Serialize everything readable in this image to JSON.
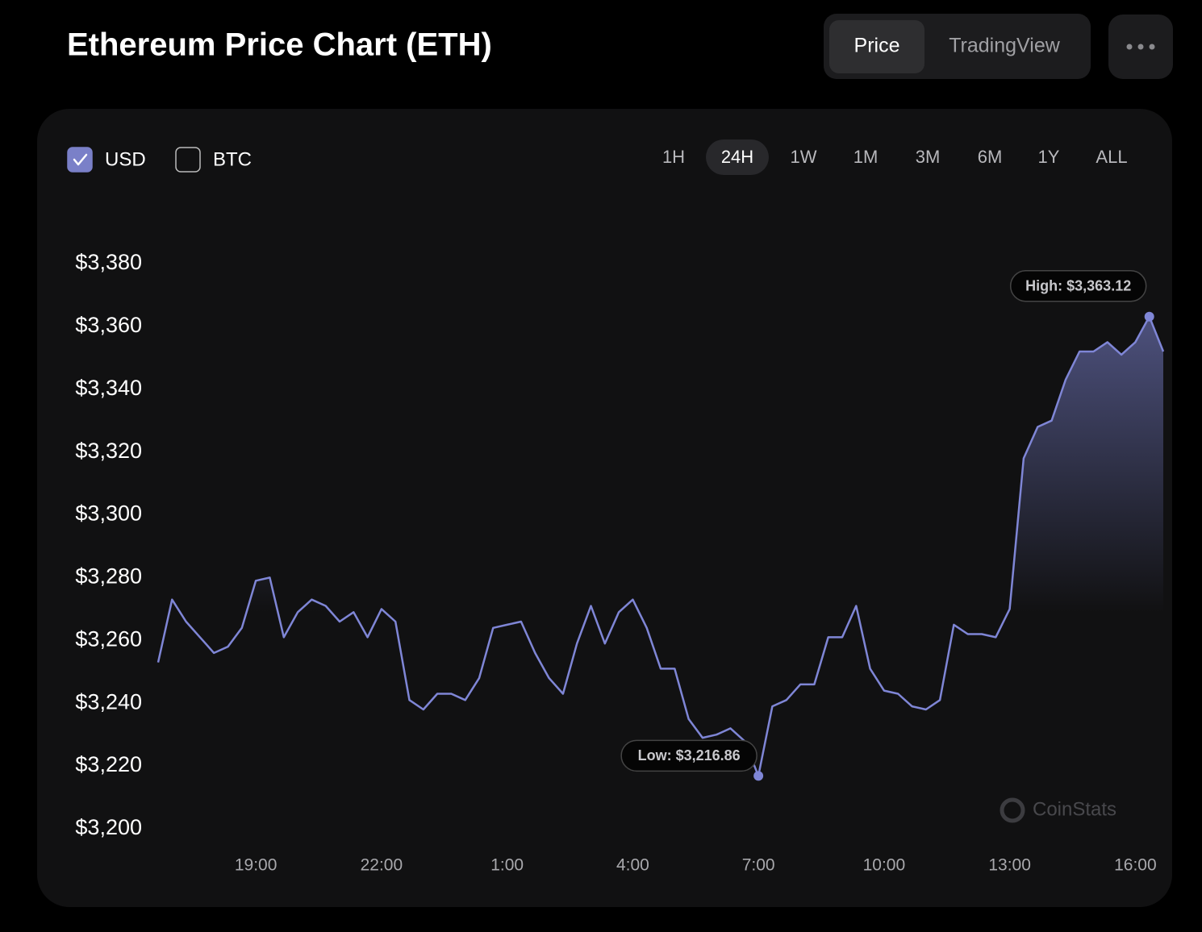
{
  "header": {
    "title": "Ethereum Price Chart (ETH)",
    "tabs": [
      "Price",
      "TradingView"
    ],
    "active_tab": 0
  },
  "currencies": [
    {
      "label": "USD",
      "checked": true
    },
    {
      "label": "BTC",
      "checked": false
    }
  ],
  "ranges": [
    "1H",
    "24H",
    "1W",
    "1M",
    "3M",
    "6M",
    "1Y",
    "ALL"
  ],
  "active_range": 1,
  "watermark": "CoinStats",
  "chart_data": {
    "type": "line",
    "x": [
      "16:40",
      "17:00",
      "17:20",
      "17:40",
      "18:00",
      "18:20",
      "18:40",
      "19:00",
      "19:20",
      "19:40",
      "20:00",
      "20:20",
      "20:40",
      "21:00",
      "21:20",
      "21:40",
      "22:00",
      "22:20",
      "22:40",
      "23:00",
      "23:20",
      "23:40",
      "0:00",
      "0:20",
      "0:40",
      "1:00",
      "1:20",
      "1:40",
      "2:00",
      "2:20",
      "2:40",
      "3:00",
      "3:20",
      "3:40",
      "4:00",
      "4:20",
      "4:40",
      "5:00",
      "5:20",
      "5:40",
      "6:00",
      "6:20",
      "6:40",
      "7:00",
      "7:20",
      "7:40",
      "8:00",
      "8:20",
      "8:40",
      "9:00",
      "9:20",
      "9:40",
      "10:00",
      "10:20",
      "10:40",
      "11:00",
      "11:20",
      "11:40",
      "12:00",
      "12:20",
      "12:40",
      "13:00",
      "13:20",
      "13:40",
      "14:00",
      "14:20",
      "14:40",
      "15:00",
      "15:20",
      "15:40",
      "16:00",
      "16:20",
      "16:40"
    ],
    "series": [
      {
        "name": "ETH",
        "color": "#7f86d6",
        "values": [
          3253,
          3273,
          3266,
          3261,
          3256,
          3258,
          3264,
          3279,
          3280,
          3261,
          3269,
          3273,
          3271,
          3266,
          3269,
          3261,
          3270,
          3266,
          3241,
          3238,
          3243,
          3243,
          3241,
          3248,
          3264,
          3265,
          3266,
          3256,
          3248,
          3243,
          3259,
          3271,
          3259,
          3269,
          3273,
          3264,
          3251,
          3251,
          3235,
          3229,
          3230,
          3232,
          3228,
          3216.86,
          3239,
          3241,
          3246,
          3246,
          3261,
          3261,
          3271,
          3251,
          3244,
          3243,
          3239,
          3238,
          3241,
          3265,
          3262,
          3262,
          3261,
          3270,
          3318,
          3328,
          3330,
          3343,
          3352,
          3352,
          3355,
          3351,
          3355,
          3363.12,
          3352
        ]
      }
    ],
    "low_label": "Low: $3,216.86",
    "high_label": "High: $3,363.12",
    "ylim": [
      3200,
      3380
    ],
    "yticks": [
      {
        "value": 3200,
        "label": "$3,200"
      },
      {
        "value": 3220,
        "label": "$3,220"
      },
      {
        "value": 3240,
        "label": "$3,240"
      },
      {
        "value": 3260,
        "label": "$3,260"
      },
      {
        "value": 3280,
        "label": "$3,280"
      },
      {
        "value": 3300,
        "label": "$3,300"
      },
      {
        "value": 3320,
        "label": "$3,320"
      },
      {
        "value": 3340,
        "label": "$3,340"
      },
      {
        "value": 3360,
        "label": "$3,360"
      },
      {
        "value": 3380,
        "label": "$3,380"
      }
    ],
    "xticks": [
      "19:00",
      "22:00",
      "1:00",
      "4:00",
      "7:00",
      "10:00",
      "13:00",
      "16:00"
    ],
    "grid": false
  }
}
